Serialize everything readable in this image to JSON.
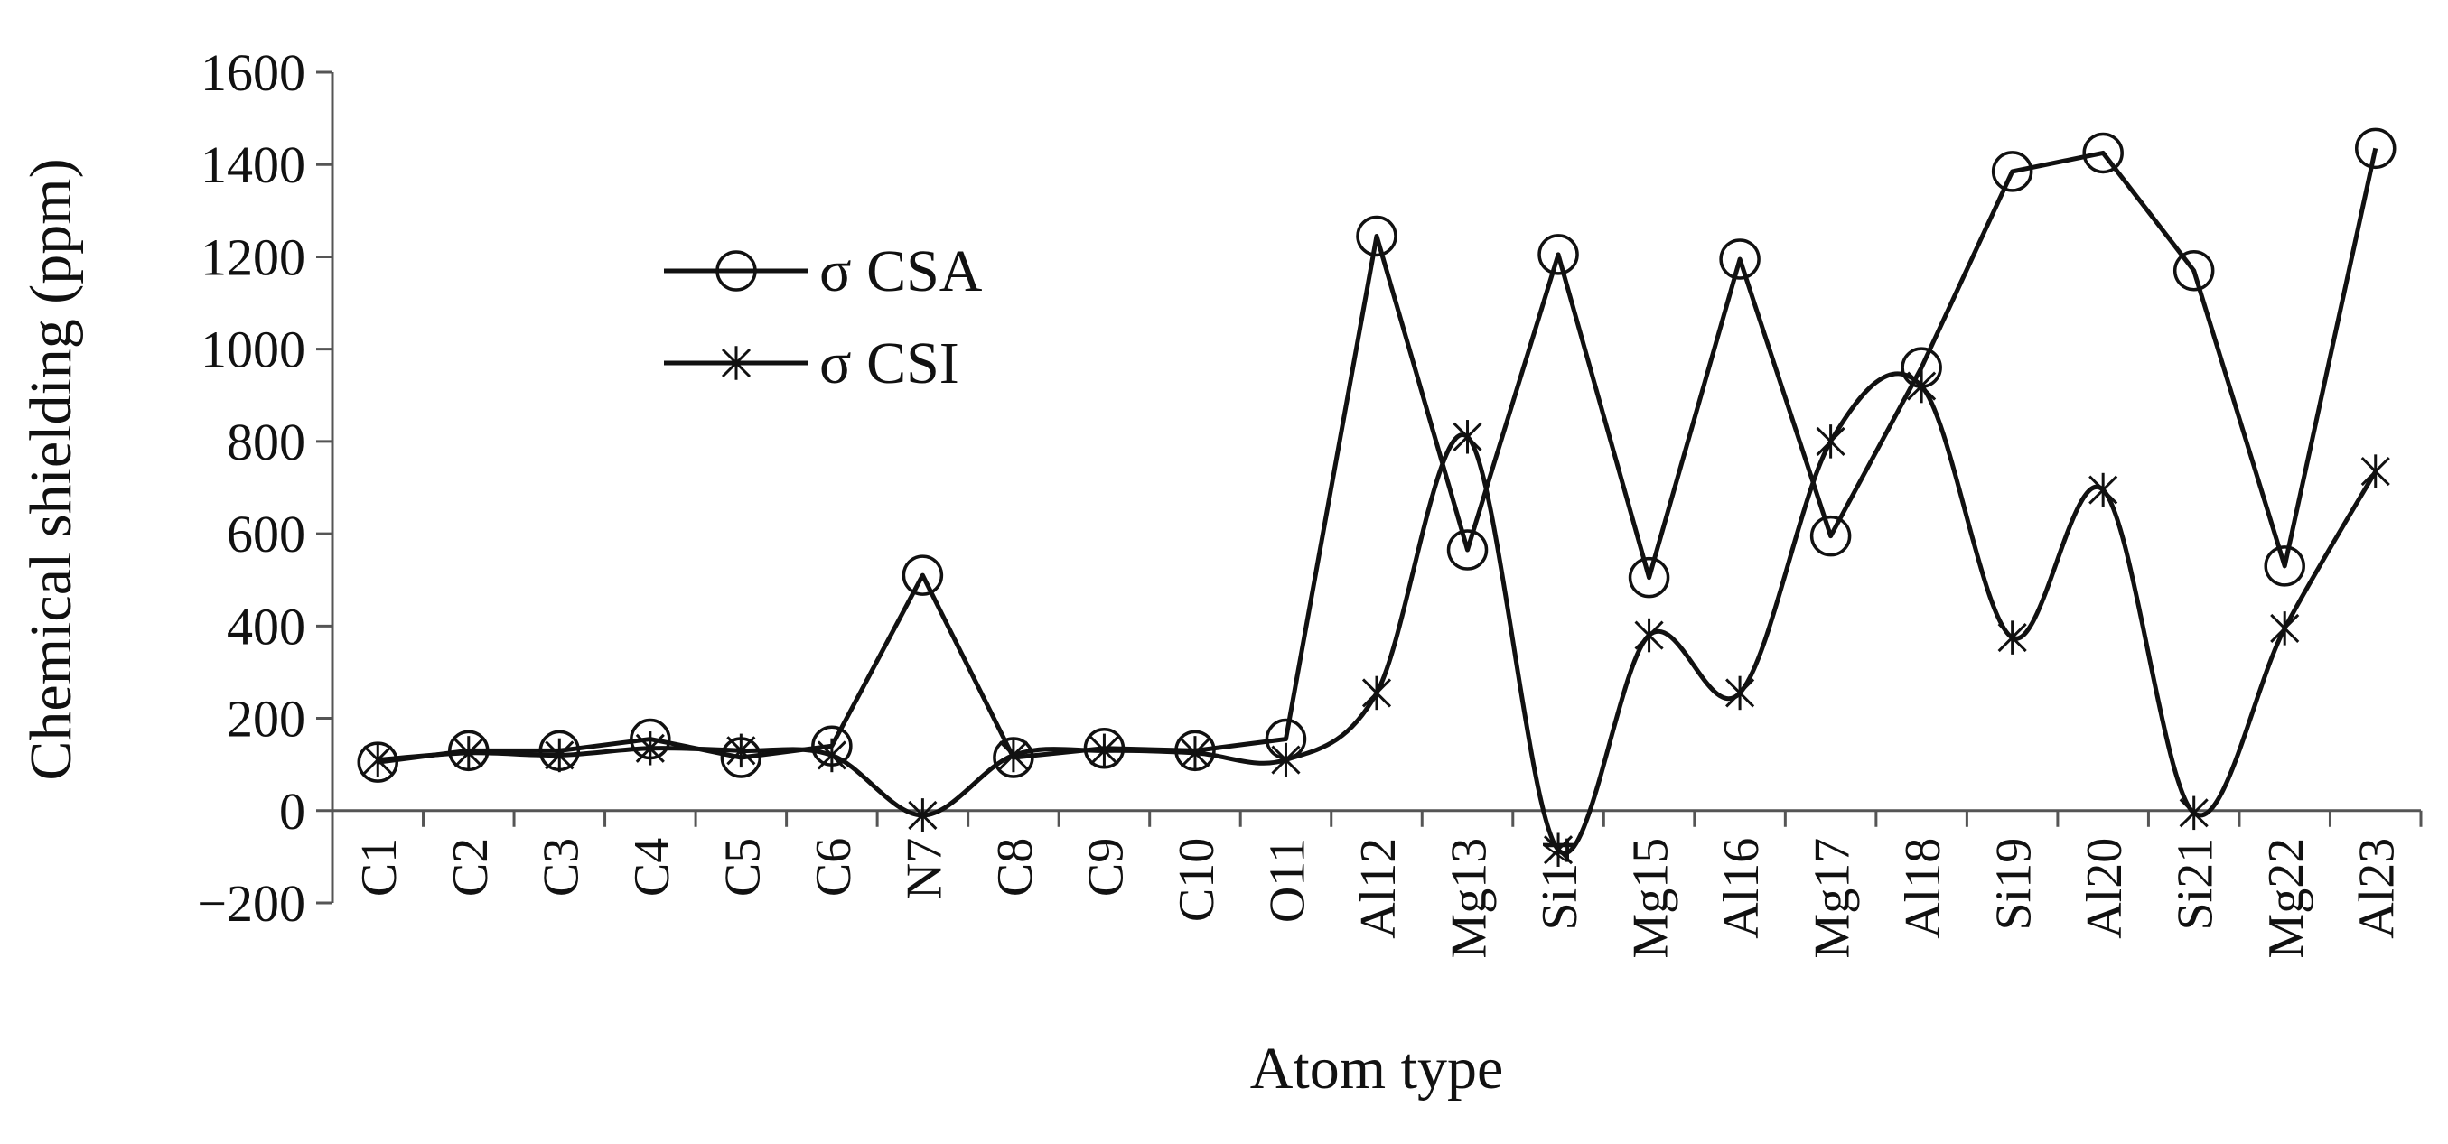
{
  "chart_data": {
    "type": "line",
    "title": "",
    "xlabel": "Atom type",
    "ylabel": "Chemical shielding (ppm)",
    "ylim": [
      -200,
      1600
    ],
    "yticks": [
      -200,
      0,
      200,
      400,
      600,
      800,
      1000,
      1200,
      1400,
      1600
    ],
    "ytick_labels": [
      "−200",
      "0",
      "200",
      "400",
      "600",
      "800",
      "1000",
      "1200",
      "1400",
      "1600"
    ],
    "grid": false,
    "legend_position": "upper-left",
    "categories": [
      "C1",
      "C2",
      "C3",
      "C4",
      "C5",
      "C6",
      "N7",
      "C8",
      "C9",
      "C10",
      "O11",
      "Al12",
      "Mg13",
      "Si14",
      "Mg15",
      "Al16",
      "Mg17",
      "Al18",
      "Si19",
      "Al20",
      "Si21",
      "Mg22",
      "Al23"
    ],
    "series": [
      {
        "name": "σ CSA",
        "marker": "circle",
        "line_style": "straight",
        "color": "#111111",
        "values": [
          105,
          130,
          130,
          155,
          115,
          140,
          510,
          115,
          135,
          130,
          155,
          1245,
          565,
          1205,
          505,
          1195,
          595,
          960,
          1385,
          1425,
          1170,
          530,
          1435
        ]
      },
      {
        "name": "σ CSI",
        "marker": "asterisk",
        "line_style": "smooth",
        "color": "#111111",
        "values": [
          110,
          125,
          120,
          135,
          130,
          120,
          -10,
          120,
          130,
          125,
          110,
          255,
          810,
          -85,
          380,
          255,
          800,
          920,
          375,
          695,
          -5,
          395,
          735
        ]
      }
    ]
  }
}
